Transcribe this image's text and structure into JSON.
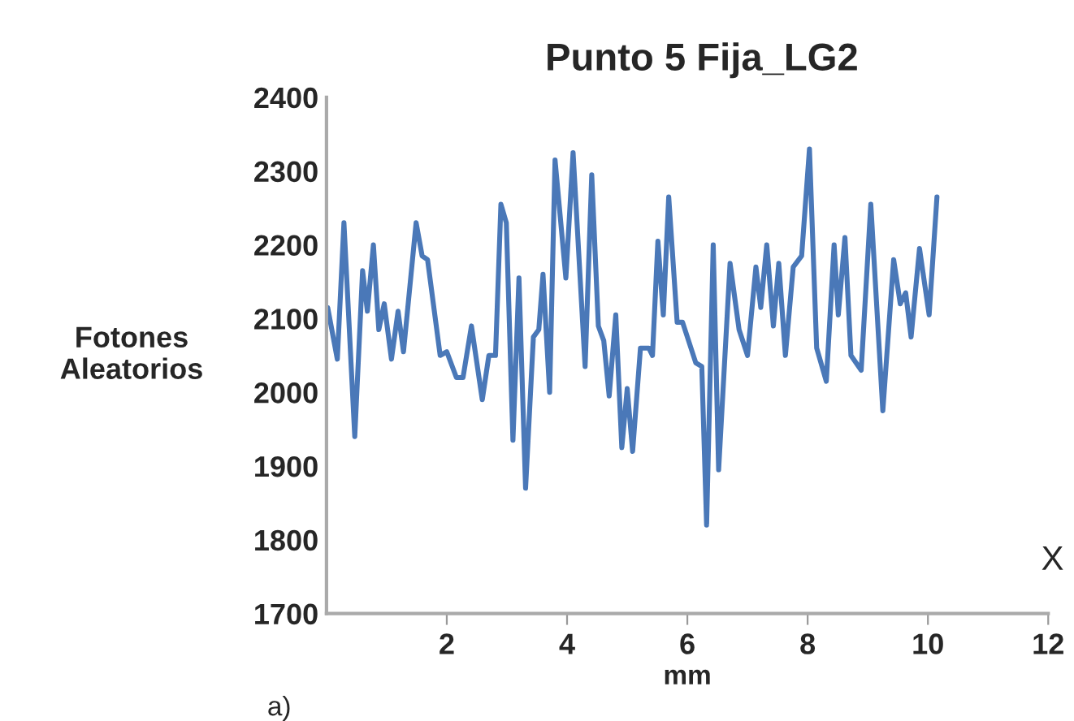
{
  "chart_data": {
    "type": "line",
    "title": "Punto 5 Fija_LG2",
    "xlabel": "mm",
    "ylabel": "Fotones\nAleatorios",
    "annotations": [
      "X",
      "a)"
    ],
    "x": [
      0.02,
      0.18,
      0.29,
      0.47,
      0.6,
      0.68,
      0.78,
      0.87,
      0.96,
      1.08,
      1.19,
      1.28,
      1.49,
      1.59,
      1.68,
      1.89,
      2.0,
      2.16,
      2.27,
      2.41,
      2.59,
      2.7,
      2.81,
      2.9,
      2.99,
      3.1,
      3.2,
      3.31,
      3.44,
      3.53,
      3.6,
      3.71,
      3.8,
      3.98,
      4.1,
      4.3,
      4.41,
      4.52,
      4.61,
      4.7,
      4.81,
      4.91,
      5.0,
      5.09,
      5.22,
      5.36,
      5.42,
      5.51,
      5.6,
      5.69,
      5.83,
      5.92,
      6.14,
      6.24,
      6.32,
      6.43,
      6.52,
      6.71,
      6.86,
      7.0,
      7.14,
      7.22,
      7.32,
      7.43,
      7.52,
      7.63,
      7.76,
      7.9,
      8.03,
      8.15,
      8.31,
      8.44,
      8.51,
      8.62,
      8.72,
      8.89,
      9.05,
      9.25,
      9.43,
      9.54,
      9.63,
      9.72,
      9.86,
      10.02,
      10.15
    ],
    "series": [
      {
        "color": "#4a78b8",
        "values": [
          2115,
          2045,
          2230,
          1940,
          2165,
          2110,
          2200,
          2085,
          2120,
          2045,
          2110,
          2055,
          2230,
          2185,
          2180,
          2050,
          2055,
          2020,
          2020,
          2090,
          1990,
          2050,
          2050,
          2255,
          2230,
          1935,
          2155,
          1870,
          2075,
          2085,
          2160,
          2000,
          2315,
          2155,
          2325,
          2035,
          2295,
          2090,
          2070,
          1995,
          2105,
          1925,
          2005,
          1920,
          2060,
          2060,
          2050,
          2205,
          2105,
          2265,
          2095,
          2095,
          2040,
          2035,
          1820,
          2200,
          1895,
          2175,
          2085,
          2050,
          2170,
          2115,
          2200,
          2090,
          2175,
          2050,
          2170,
          2185,
          2330,
          2060,
          2015,
          2200,
          2105,
          2210,
          2050,
          2030,
          2255,
          1975,
          2180,
          2120,
          2135,
          2075,
          2195,
          2105,
          2265
        ]
      }
    ],
    "xlim": [
      0,
      12
    ],
    "xticks": [
      2,
      4,
      6,
      8,
      10,
      12
    ],
    "ylim": [
      1700,
      2400
    ],
    "yticks": [
      1700,
      1800,
      1900,
      2000,
      2100,
      2200,
      2300,
      2400
    ],
    "grid": false,
    "legend": false,
    "marker": "none",
    "line_style": "solid"
  }
}
